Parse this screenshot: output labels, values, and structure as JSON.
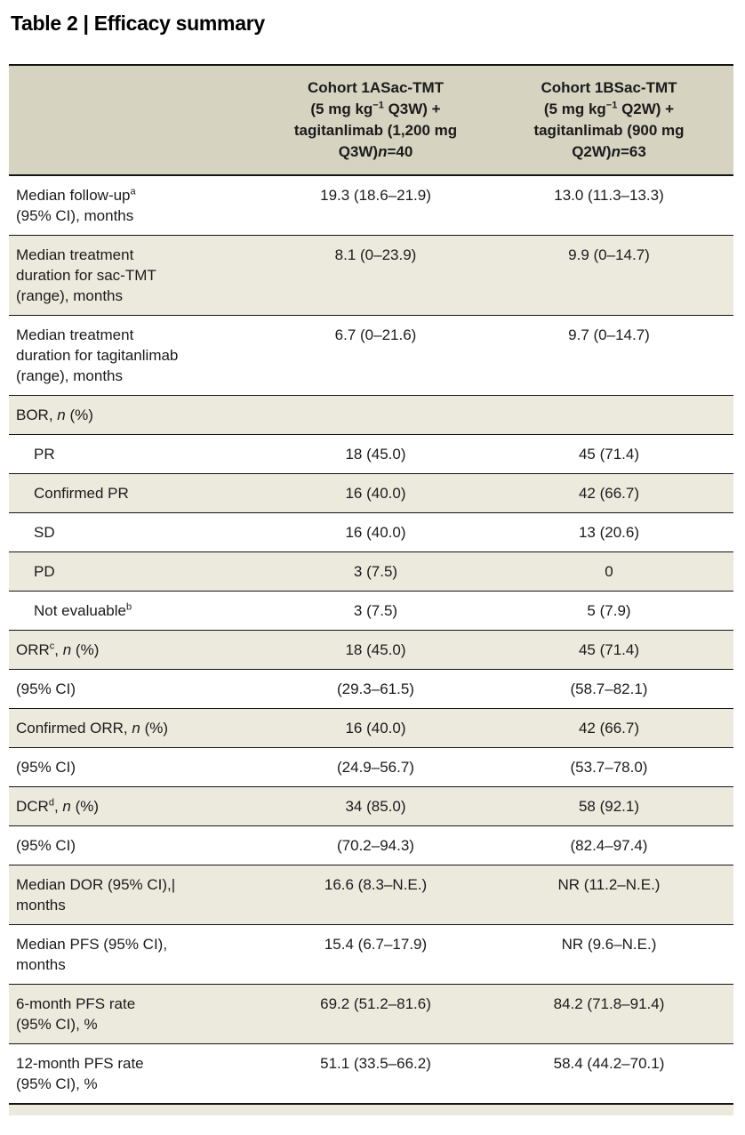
{
  "title": "Table 2 | Efficacy summary",
  "colors": {
    "header_bg": "#d6d3c1",
    "row_alt_bg": "#ece9dd",
    "row_bg": "#ffffff",
    "rule": "#141414",
    "text": "#1b1b1b",
    "title": "#000000"
  },
  "table": {
    "columns": [
      {
        "lines": []
      },
      {
        "lines": [
          "Cohort 1ASac-TMT",
          "(5 mg kg^−1^ Q3W) +",
          "tagitanlimab (1,200 mg",
          "Q3W)~n~=40"
        ]
      },
      {
        "lines": [
          "Cohort 1BSac-TMT",
          "(5 mg kg^−1^ Q2W) +",
          "tagitanlimab (900 mg",
          "Q2W)~n~=63"
        ]
      }
    ],
    "rows": [
      {
        "label_lines": [
          "Median follow-up^a^",
          "(95% CI), months"
        ],
        "values": [
          "19.3 (18.6–21.9)",
          "13.0 (11.3–13.3)"
        ],
        "shaded": false,
        "indent": false
      },
      {
        "label_lines": [
          "Median treatment",
          "duration for sac-TMT",
          "(range), months"
        ],
        "values": [
          "8.1 (0–23.9)",
          "9.9 (0–14.7)"
        ],
        "shaded": true,
        "indent": false
      },
      {
        "label_lines": [
          "Median treatment",
          "duration for tagitanlimab",
          "(range), months"
        ],
        "values": [
          "6.7 (0–21.6)",
          "9.7 (0–14.7)"
        ],
        "shaded": false,
        "indent": false
      },
      {
        "label_lines": [
          "BOR, ~n~ (%)"
        ],
        "values": [
          "",
          ""
        ],
        "shaded": true,
        "indent": false
      },
      {
        "label_lines": [
          "PR"
        ],
        "values": [
          "18 (45.0)",
          "45 (71.4)"
        ],
        "shaded": false,
        "indent": true
      },
      {
        "label_lines": [
          "Confirmed PR"
        ],
        "values": [
          "16 (40.0)",
          "42 (66.7)"
        ],
        "shaded": true,
        "indent": true
      },
      {
        "label_lines": [
          "SD"
        ],
        "values": [
          "16 (40.0)",
          "13 (20.6)"
        ],
        "shaded": false,
        "indent": true
      },
      {
        "label_lines": [
          "PD"
        ],
        "values": [
          "3 (7.5)",
          "0"
        ],
        "shaded": true,
        "indent": true
      },
      {
        "label_lines": [
          "Not evaluable^b^"
        ],
        "values": [
          "3 (7.5)",
          "5 (7.9)"
        ],
        "shaded": false,
        "indent": true
      },
      {
        "label_lines": [
          "ORR^c^, ~n~ (%)"
        ],
        "values": [
          "18 (45.0)",
          "45 (71.4)"
        ],
        "shaded": true,
        "indent": false
      },
      {
        "label_lines": [
          "(95% CI)"
        ],
        "values": [
          "(29.3–61.5)",
          "(58.7–82.1)"
        ],
        "shaded": false,
        "indent": false
      },
      {
        "label_lines": [
          "Confirmed ORR, ~n~ (%)"
        ],
        "values": [
          "16 (40.0)",
          "42 (66.7)"
        ],
        "shaded": true,
        "indent": false
      },
      {
        "label_lines": [
          "(95% CI)"
        ],
        "values": [
          "(24.9–56.7)",
          "(53.7–78.0)"
        ],
        "shaded": false,
        "indent": false
      },
      {
        "label_lines": [
          "DCR^d^, ~n~ (%)"
        ],
        "values": [
          "34 (85.0)",
          "58 (92.1)"
        ],
        "shaded": true,
        "indent": false
      },
      {
        "label_lines": [
          "(95% CI)"
        ],
        "values": [
          "(70.2–94.3)",
          "(82.4–97.4)"
        ],
        "shaded": false,
        "indent": false
      },
      {
        "label_lines": [
          "Median DOR (95% CI),|",
          "months"
        ],
        "values": [
          "16.6 (8.3–N.E.)",
          "NR (11.2–N.E.)"
        ],
        "shaded": true,
        "indent": false
      },
      {
        "label_lines": [
          "Median PFS (95% CI),",
          "months"
        ],
        "values": [
          "15.4 (6.7–17.9)",
          "NR (9.6–N.E.)"
        ],
        "shaded": false,
        "indent": false
      },
      {
        "label_lines": [
          "6-month PFS rate",
          "(95% CI), %"
        ],
        "values": [
          "69.2 (51.2–81.6)",
          "84.2 (71.8–91.4)"
        ],
        "shaded": true,
        "indent": false
      },
      {
        "label_lines": [
          "12-month PFS rate",
          "(95% CI), %"
        ],
        "values": [
          "51.1 (33.5–66.2)",
          "58.4 (44.2–70.1)"
        ],
        "shaded": false,
        "indent": false
      }
    ]
  }
}
